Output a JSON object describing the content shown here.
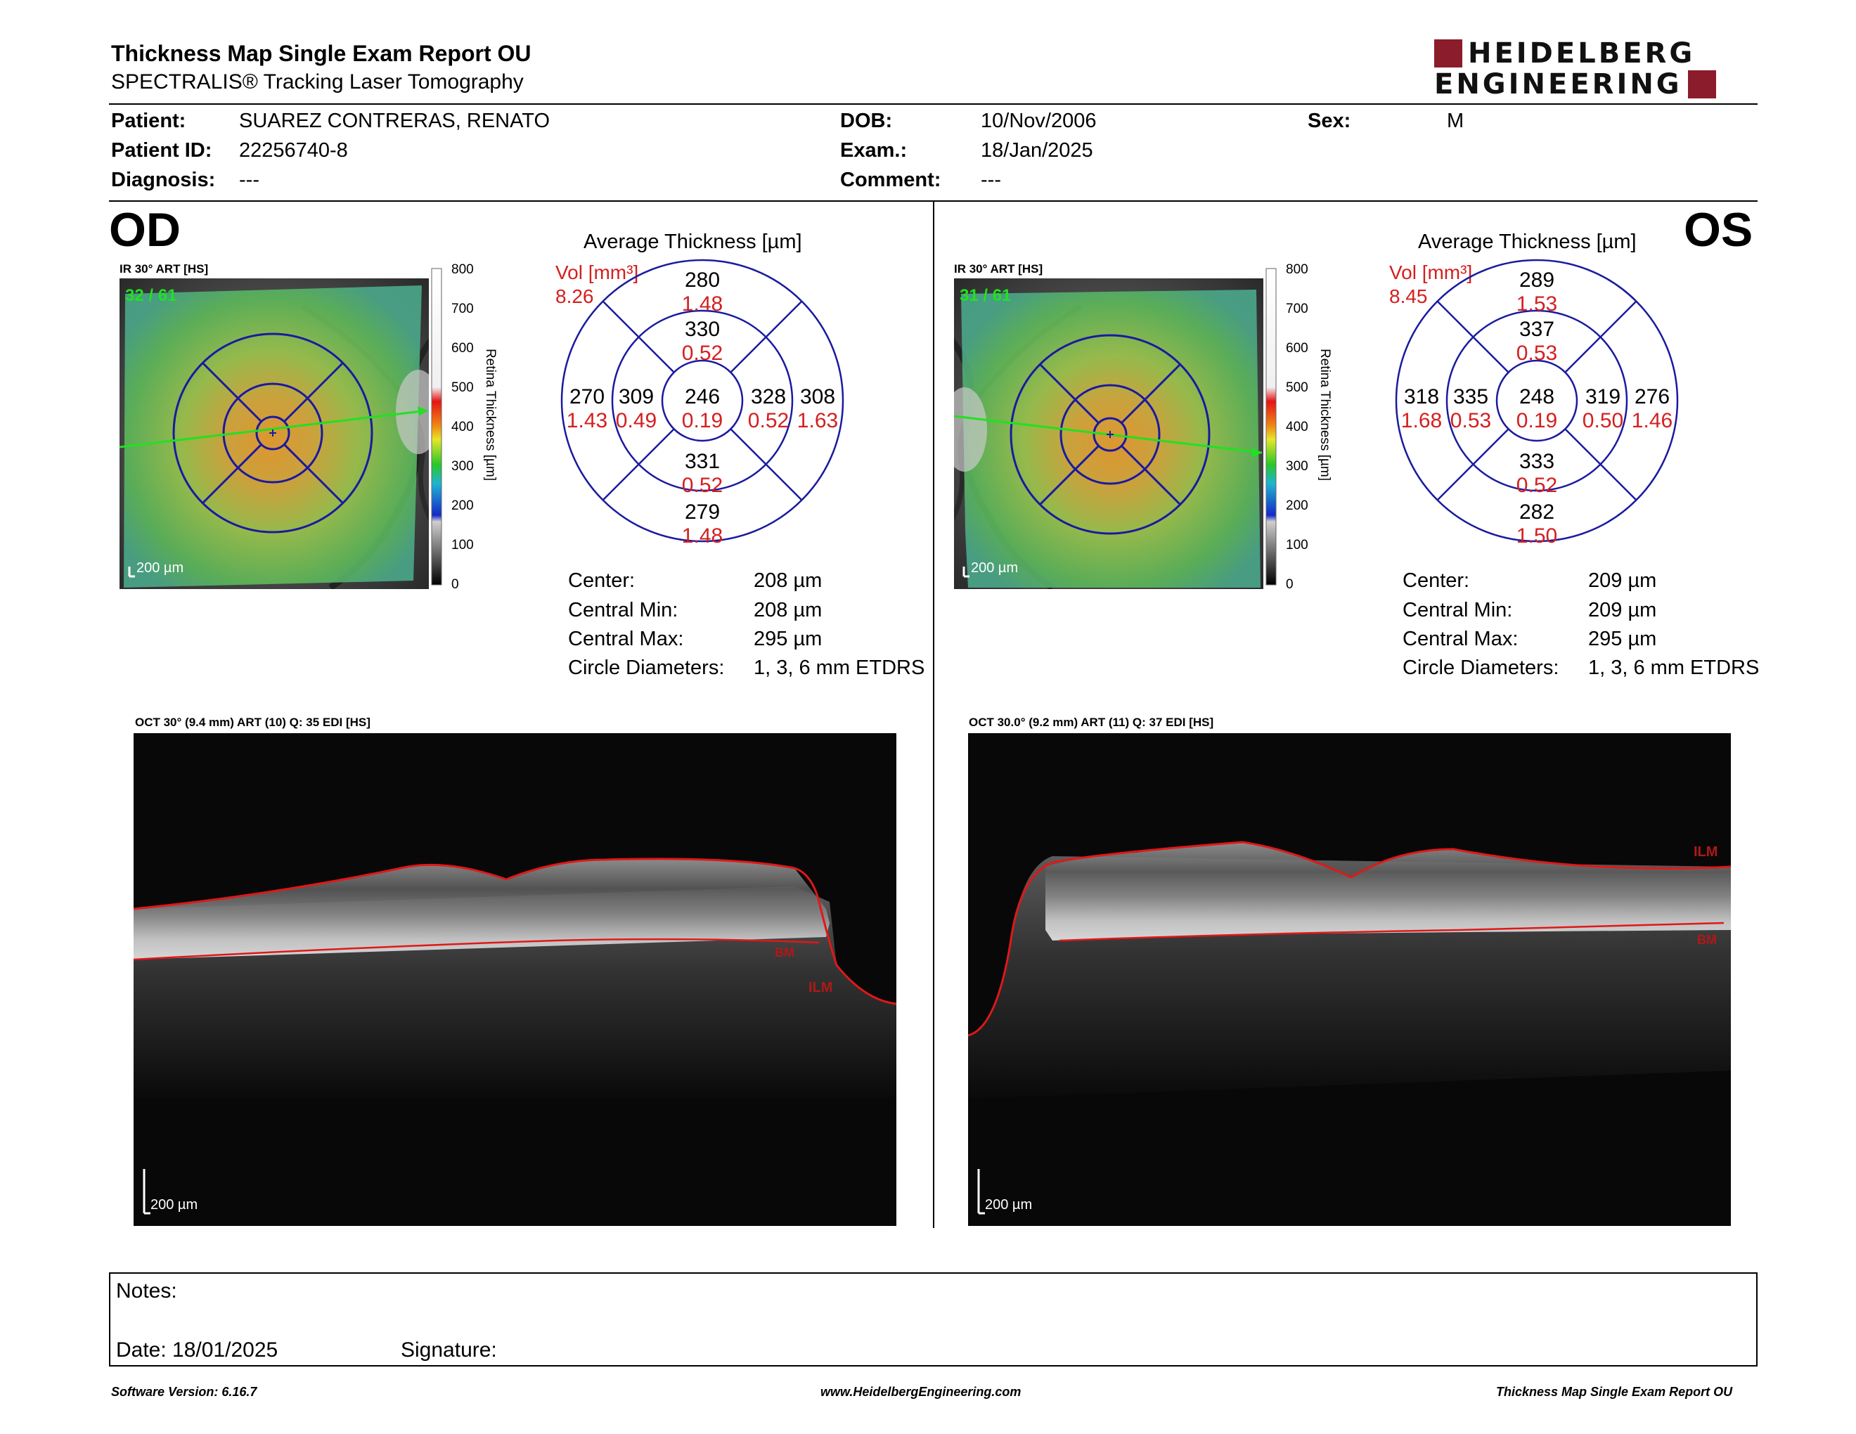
{
  "header": {
    "title": "Thickness Map Single Exam Report OU",
    "subtitle": "SPECTRALIS® Tracking Laser Tomography",
    "logo_line1": "HEIDELBERG",
    "logo_line2": "ENGINEERING"
  },
  "patient": {
    "patient_label": "Patient:",
    "patient_value": "SUAREZ CONTRERAS, RENATO",
    "id_label": "Patient ID:",
    "id_value": "22256740-8",
    "diagnosis_label": "Diagnosis:",
    "diagnosis_value": "---",
    "dob_label": "DOB:",
    "dob_value": "10/Nov/2006",
    "exam_label": "Exam.:",
    "exam_value": "18/Jan/2025",
    "comment_label": "Comment:",
    "comment_value": "---",
    "sex_label": "Sex:",
    "sex_value": "M"
  },
  "colorbar": {
    "ticks": [
      "800",
      "700",
      "600",
      "500",
      "400",
      "300",
      "200",
      "100",
      "0"
    ],
    "label": "Retina Thickness [µm]"
  },
  "od": {
    "eye": "OD",
    "fundus_label": "IR 30° ART [HS]",
    "frame_counter": "32 / 61",
    "scale": "200 µm",
    "avg_title": "Average Thickness [µm]",
    "vol_label": "Vol [mm³]",
    "vol_value": "8.26",
    "sectors": {
      "outer_top": {
        "t": "280",
        "v": "1.48"
      },
      "inner_top": {
        "t": "330",
        "v": "0.52"
      },
      "outer_left": {
        "t": "270",
        "v": "1.43"
      },
      "inner_left": {
        "t": "309",
        "v": "0.49"
      },
      "center": {
        "t": "246",
        "v": "0.19"
      },
      "inner_right": {
        "t": "328",
        "v": "0.52"
      },
      "outer_right": {
        "t": "308",
        "v": "1.63"
      },
      "inner_bottom": {
        "t": "331",
        "v": "0.52"
      },
      "outer_bottom": {
        "t": "279",
        "v": "1.48"
      }
    },
    "stats": [
      {
        "label": "Center:",
        "value": "208 µm"
      },
      {
        "label": "Central Min:",
        "value": "208 µm"
      },
      {
        "label": "Central Max:",
        "value": "295 µm"
      },
      {
        "label": "Circle Diameters:",
        "value": "1, 3, 6 mm ETDRS"
      }
    ],
    "oct_label": "OCT 30° (9.4 mm) ART (10) Q: 35 EDI [HS]",
    "oct_scale": "200 µm",
    "ilm": "ILM",
    "bm": "BM"
  },
  "os": {
    "eye": "OS",
    "fundus_label": "IR 30° ART [HS]",
    "frame_counter": "31 / 61",
    "scale": "200 µm",
    "avg_title": "Average Thickness [µm]",
    "vol_label": "Vol [mm³]",
    "vol_value": "8.45",
    "sectors": {
      "outer_top": {
        "t": "289",
        "v": "1.53"
      },
      "inner_top": {
        "t": "337",
        "v": "0.53"
      },
      "outer_left": {
        "t": "318",
        "v": "1.68"
      },
      "inner_left": {
        "t": "335",
        "v": "0.53"
      },
      "center": {
        "t": "248",
        "v": "0.19"
      },
      "inner_right": {
        "t": "319",
        "v": "0.50"
      },
      "outer_right": {
        "t": "276",
        "v": "1.46"
      },
      "inner_bottom": {
        "t": "333",
        "v": "0.52"
      },
      "outer_bottom": {
        "t": "282",
        "v": "1.50"
      }
    },
    "stats": [
      {
        "label": "Center:",
        "value": "209 µm"
      },
      {
        "label": "Central Min:",
        "value": "209 µm"
      },
      {
        "label": "Central Max:",
        "value": "295 µm"
      },
      {
        "label": "Circle Diameters:",
        "value": "1, 3, 6 mm ETDRS"
      }
    ],
    "oct_label": "OCT 30.0° (9.2 mm) ART (11) Q: 37 EDI [HS]",
    "oct_scale": "200 µm",
    "ilm": "ILM",
    "bm": "BM"
  },
  "notes": {
    "notes_label": "Notes:",
    "date_label": "Date: 18/01/2025",
    "signature_label": "Signature:"
  },
  "footer": {
    "left": "Software Version: 6.16.7",
    "center": "www.HeidelbergEngineering.com",
    "right": "Thickness Map Single Exam Report OU"
  },
  "colors": {
    "accent_red": "#d42020",
    "etdrs_blue": "#1a1aa0",
    "logo_red": "#8b1c2b",
    "ilm_line": "#e01818"
  }
}
